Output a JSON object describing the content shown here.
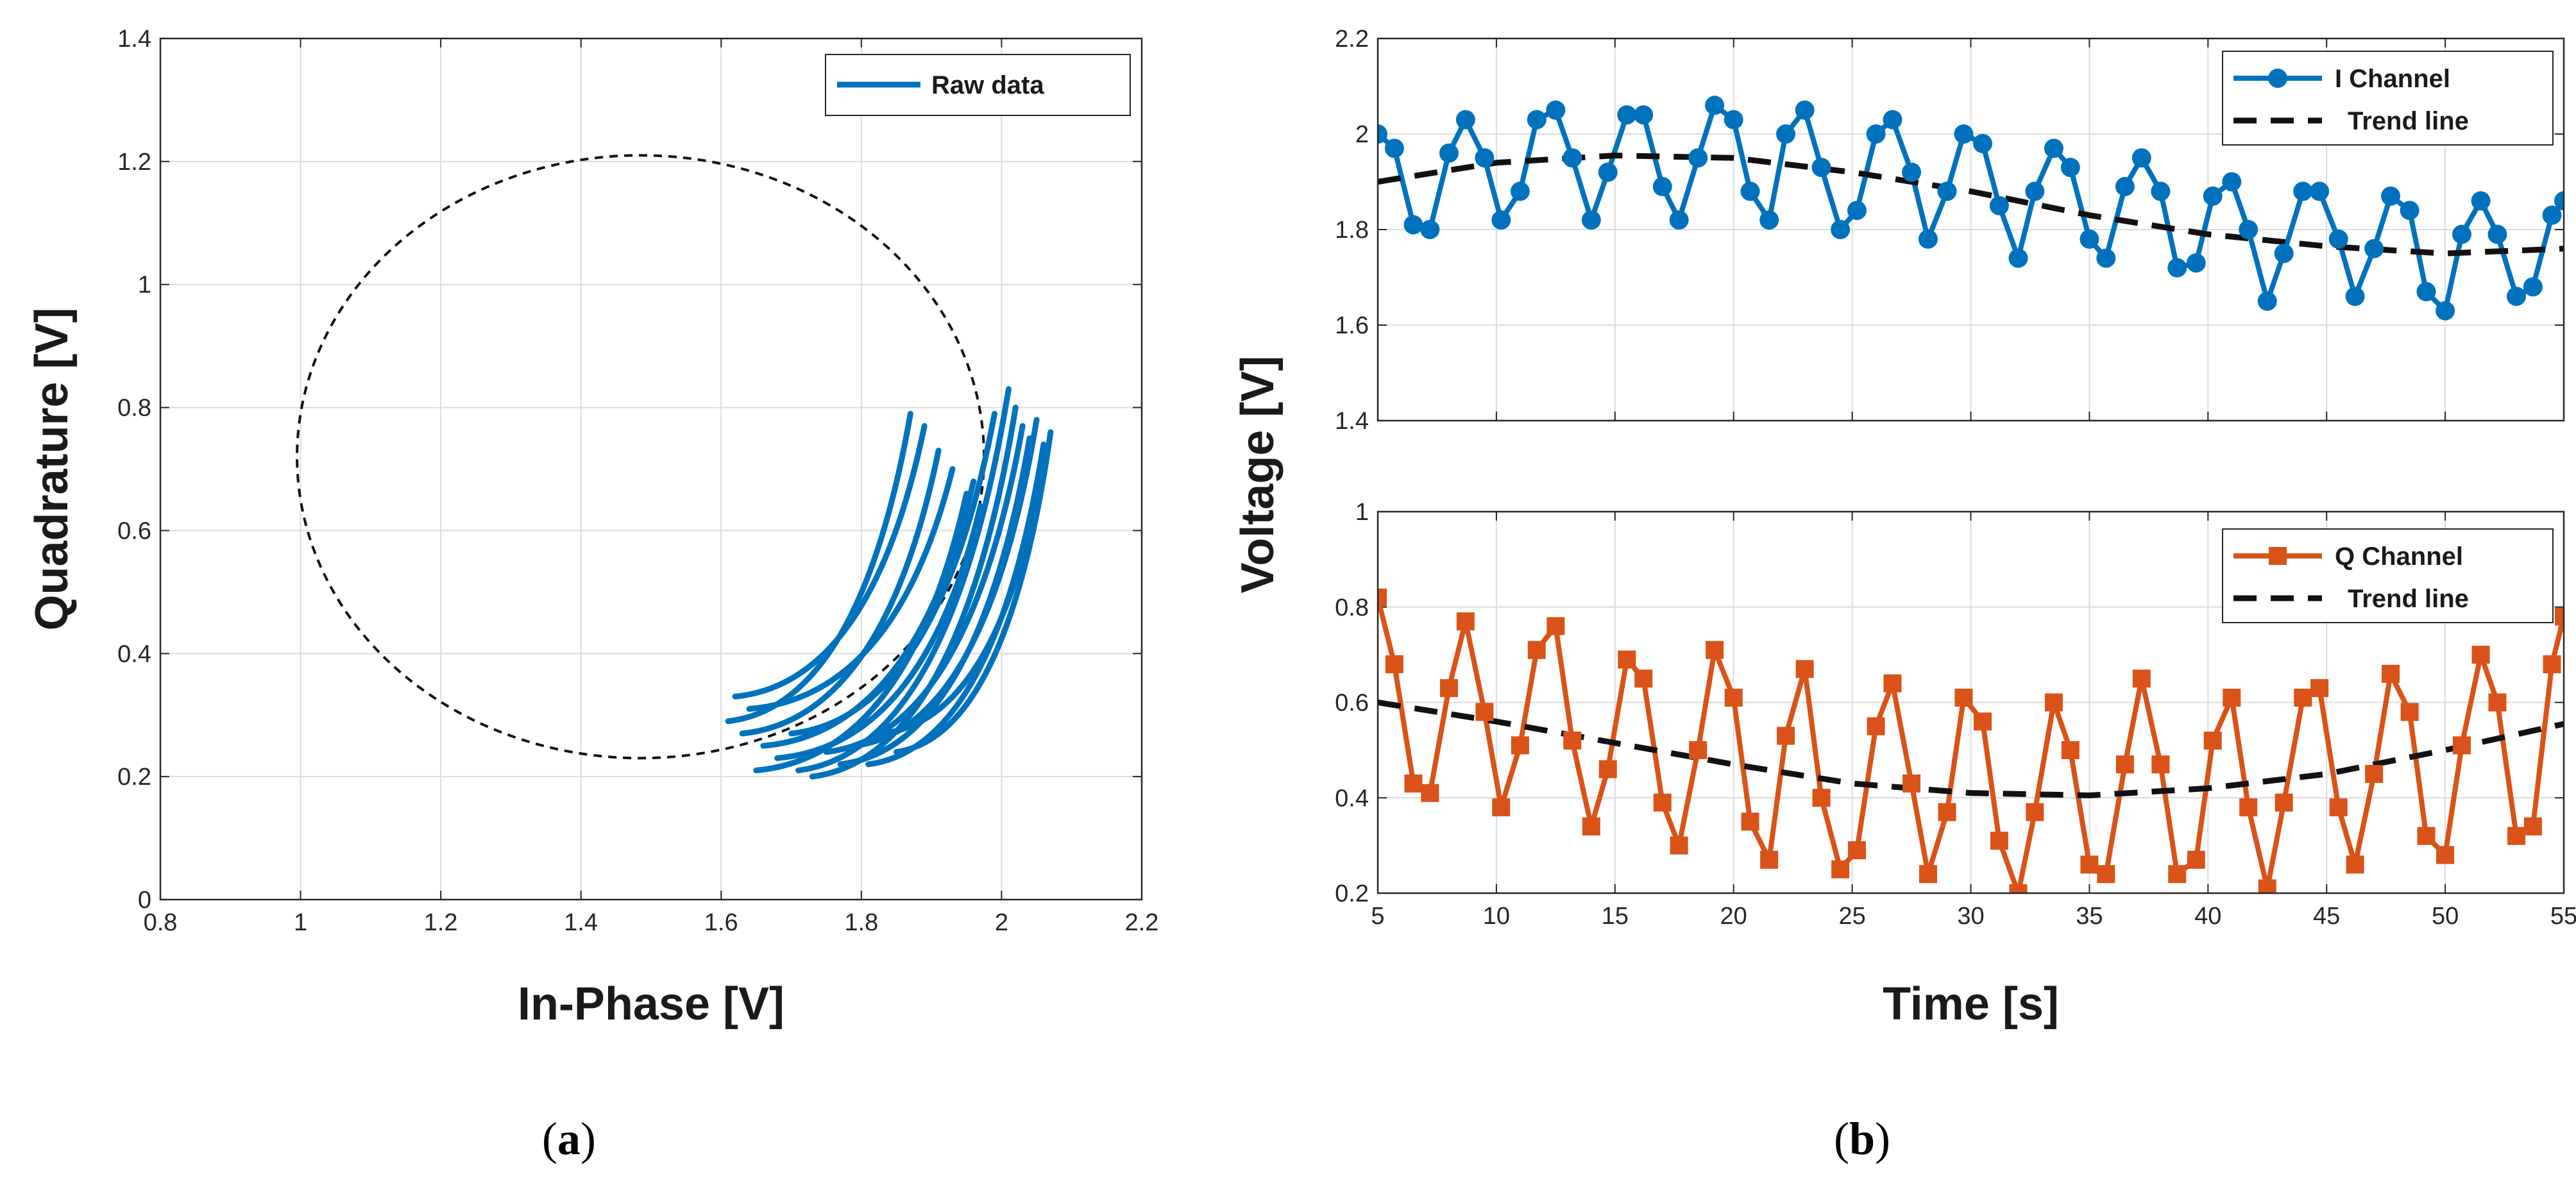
{
  "colors": {
    "blue": "#0072BD",
    "orange": "#D95319",
    "trend": "#111111",
    "grid": "#dcdcdc",
    "axis": "#262626"
  },
  "chart_data": [
    {
      "id": "a",
      "type": "line",
      "panel_label": "(a)",
      "xlabel": "In-Phase [V]",
      "ylabel": "Quadrature [V]",
      "xlim": [
        0.8,
        2.2
      ],
      "ylim": [
        0,
        1.4
      ],
      "xticks": [
        "0.8",
        "1",
        "1.2",
        "1.4",
        "1.6",
        "1.8",
        "2",
        "2.2"
      ],
      "yticks": [
        "0",
        "0.2",
        "0.4",
        "0.6",
        "0.8",
        "1",
        "1.2",
        "1.4"
      ],
      "grid": true,
      "legend": {
        "position": "top-right",
        "entries": [
          "Raw data"
        ]
      },
      "fit_circle": {
        "center": [
          1.485,
          0.72
        ],
        "radius": 0.49,
        "style": "dashed"
      },
      "series": [
        {
          "name": "Raw data",
          "arcs": [
            {
              "start": [
                1.61,
                0.29
              ],
              "end": [
                1.87,
                0.79
              ]
            },
            {
              "start": [
                1.62,
                0.33
              ],
              "end": [
                1.89,
                0.77
              ]
            },
            {
              "start": [
                1.63,
                0.27
              ],
              "end": [
                1.91,
                0.73
              ]
            },
            {
              "start": [
                1.64,
                0.31
              ],
              "end": [
                1.93,
                0.7
              ]
            },
            {
              "start": [
                1.65,
                0.21
              ],
              "end": [
                1.95,
                0.66
              ]
            },
            {
              "start": [
                1.66,
                0.25
              ],
              "end": [
                1.96,
                0.68
              ]
            },
            {
              "start": [
                1.68,
                0.23
              ],
              "end": [
                1.97,
                0.64
              ]
            },
            {
              "start": [
                1.7,
                0.27
              ],
              "end": [
                1.99,
                0.79
              ]
            },
            {
              "start": [
                1.71,
                0.21
              ],
              "end": [
                2.01,
                0.83
              ]
            },
            {
              "start": [
                1.73,
                0.2
              ],
              "end": [
                2.02,
                0.8
              ]
            },
            {
              "start": [
                1.75,
                0.24
              ],
              "end": [
                2.03,
                0.77
              ]
            },
            {
              "start": [
                1.77,
                0.22
              ],
              "end": [
                2.04,
                0.75
              ]
            },
            {
              "start": [
                1.79,
                0.25
              ],
              "end": [
                2.05,
                0.78
              ]
            },
            {
              "start": [
                1.81,
                0.22
              ],
              "end": [
                2.06,
                0.74
              ]
            },
            {
              "start": [
                1.83,
                0.27
              ],
              "end": [
                2.06,
                0.71
              ]
            },
            {
              "start": [
                1.85,
                0.24
              ],
              "end": [
                2.07,
                0.76
              ]
            }
          ]
        }
      ]
    },
    {
      "id": "b-top",
      "type": "line",
      "panel_label": "(b)",
      "xlabel": "",
      "ylabel": "Voltage [V]",
      "xlim": [
        5,
        55
      ],
      "ylim": [
        1.4,
        2.2
      ],
      "xticks": [
        "5",
        "10",
        "15",
        "20",
        "25",
        "30",
        "35",
        "40",
        "45",
        "50",
        "55"
      ],
      "yticks": [
        "1.4",
        "1.6",
        "1.8",
        "2",
        "2.2"
      ],
      "grid": true,
      "legend": {
        "position": "top-right",
        "entries": [
          "I Channel",
          "Trend line"
        ]
      },
      "series": [
        {
          "name": "I Channel",
          "marker": "circle",
          "x": [
            5.0,
            5.7,
            6.5,
            7.2,
            8.0,
            8.7,
            9.5,
            10.2,
            11.0,
            11.7,
            12.5,
            13.2,
            14.0,
            14.7,
            15.5,
            16.2,
            17.0,
            17.7,
            18.5,
            19.2,
            20.0,
            20.7,
            21.5,
            22.2,
            23.0,
            23.7,
            24.5,
            25.2,
            26.0,
            26.7,
            27.5,
            28.2,
            29.0,
            29.7,
            30.5,
            31.2,
            32.0,
            32.7,
            33.5,
            34.2,
            35.0,
            35.7,
            36.5,
            37.2,
            38.0,
            38.7,
            39.5,
            40.2,
            41.0,
            41.7,
            42.5,
            43.2,
            44.0,
            44.7,
            45.5,
            46.2,
            47.0,
            47.7,
            48.5,
            49.2,
            50.0,
            50.7,
            51.5,
            52.2,
            53.0,
            53.7,
            54.5,
            55.0
          ],
          "y": [
            2.0,
            1.97,
            1.81,
            1.8,
            1.96,
            2.03,
            1.95,
            1.82,
            1.88,
            2.03,
            2.05,
            1.95,
            1.82,
            1.92,
            2.04,
            2.04,
            1.89,
            1.82,
            1.95,
            2.06,
            2.03,
            1.88,
            1.82,
            2.0,
            2.05,
            1.93,
            1.8,
            1.84,
            2.0,
            2.03,
            1.92,
            1.78,
            1.88,
            2.0,
            1.98,
            1.85,
            1.74,
            1.88,
            1.97,
            1.93,
            1.78,
            1.74,
            1.89,
            1.95,
            1.88,
            1.72,
            1.73,
            1.87,
            1.9,
            1.8,
            1.65,
            1.75,
            1.88,
            1.88,
            1.78,
            1.66,
            1.76,
            1.87,
            1.84,
            1.67,
            1.63,
            1.79,
            1.86,
            1.79,
            1.66,
            1.68,
            1.83,
            1.86
          ]
        },
        {
          "name": "Trend line",
          "style": "dashed",
          "x": [
            5,
            10,
            15,
            20,
            25,
            30,
            35,
            40,
            45,
            50,
            55
          ],
          "y": [
            1.9,
            1.94,
            1.955,
            1.95,
            1.92,
            1.88,
            1.83,
            1.79,
            1.765,
            1.75,
            1.76
          ]
        }
      ]
    },
    {
      "id": "b-bottom",
      "type": "line",
      "xlabel": "Time [s]",
      "ylabel": "Voltage [V]",
      "xlim": [
        5,
        55
      ],
      "ylim": [
        0.2,
        1
      ],
      "xticks": [
        "5",
        "10",
        "15",
        "20",
        "25",
        "30",
        "35",
        "40",
        "45",
        "50",
        "55"
      ],
      "yticks": [
        "0.2",
        "0.4",
        "0.6",
        "0.8",
        "1"
      ],
      "grid": true,
      "legend": {
        "position": "top-right",
        "entries": [
          "Q Channel",
          "Trend line"
        ]
      },
      "series": [
        {
          "name": "Q Channel",
          "marker": "square",
          "x": [
            5.0,
            5.7,
            6.5,
            7.2,
            8.0,
            8.7,
            9.5,
            10.2,
            11.0,
            11.7,
            12.5,
            13.2,
            14.0,
            14.7,
            15.5,
            16.2,
            17.0,
            17.7,
            18.5,
            19.2,
            20.0,
            20.7,
            21.5,
            22.2,
            23.0,
            23.7,
            24.5,
            25.2,
            26.0,
            26.7,
            27.5,
            28.2,
            29.0,
            29.7,
            30.5,
            31.2,
            32.0,
            32.7,
            33.5,
            34.2,
            35.0,
            35.7,
            36.5,
            37.2,
            38.0,
            38.7,
            39.5,
            40.2,
            41.0,
            41.7,
            42.5,
            43.2,
            44.0,
            44.7,
            45.5,
            46.2,
            47.0,
            47.7,
            48.5,
            49.2,
            50.0,
            50.7,
            51.5,
            52.2,
            53.0,
            53.7,
            54.5,
            55.0
          ],
          "y": [
            0.82,
            0.68,
            0.43,
            0.41,
            0.63,
            0.77,
            0.58,
            0.38,
            0.51,
            0.71,
            0.76,
            0.52,
            0.34,
            0.46,
            0.69,
            0.65,
            0.39,
            0.3,
            0.5,
            0.71,
            0.61,
            0.35,
            0.27,
            0.53,
            0.67,
            0.4,
            0.25,
            0.29,
            0.55,
            0.64,
            0.43,
            0.24,
            0.37,
            0.61,
            0.56,
            0.31,
            0.2,
            0.37,
            0.6,
            0.5,
            0.26,
            0.24,
            0.47,
            0.65,
            0.47,
            0.24,
            0.27,
            0.52,
            0.61,
            0.38,
            0.21,
            0.39,
            0.61,
            0.63,
            0.38,
            0.26,
            0.45,
            0.66,
            0.58,
            0.32,
            0.28,
            0.51,
            0.7,
            0.6,
            0.32,
            0.34,
            0.68,
            0.78
          ]
        },
        {
          "name": "Trend line",
          "style": "dashed",
          "x": [
            5,
            10,
            15,
            20,
            25,
            30,
            35,
            40,
            45,
            50,
            55
          ],
          "y": [
            0.6,
            0.56,
            0.515,
            0.47,
            0.43,
            0.41,
            0.405,
            0.42,
            0.45,
            0.5,
            0.555
          ]
        }
      ]
    }
  ]
}
